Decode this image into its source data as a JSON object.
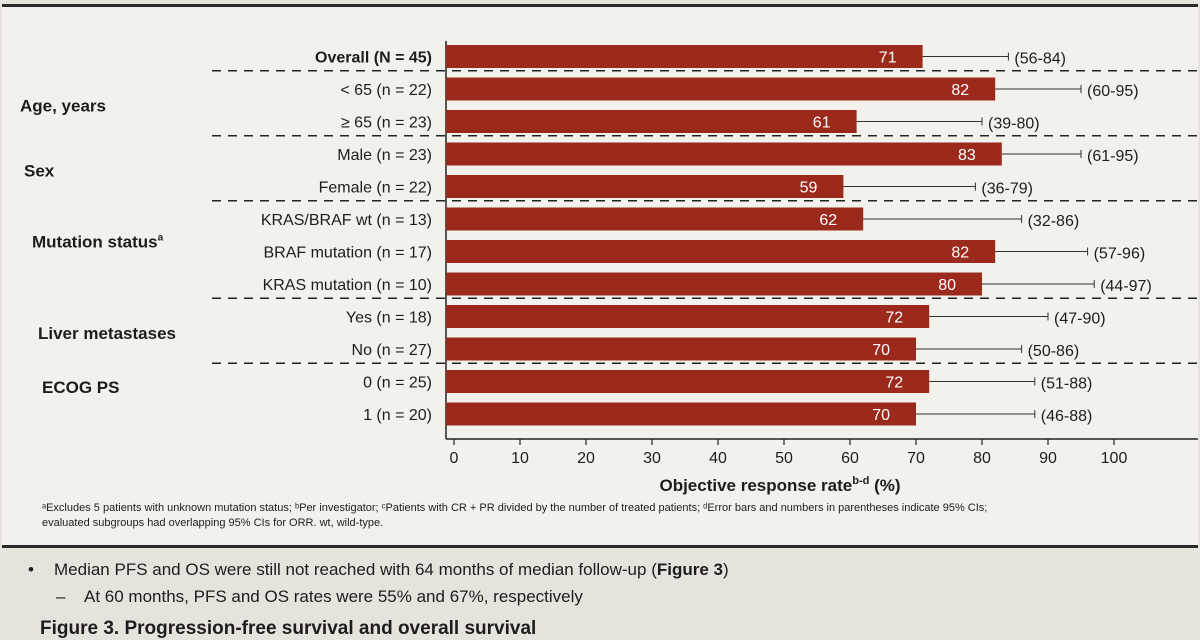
{
  "chart_data": {
    "type": "bar",
    "orientation": "horizontal",
    "xlabel": "Objective response rate",
    "xlabel_sup": "b-d",
    "xlabel_unit": "(%)",
    "xlim": [
      0,
      100
    ],
    "xticks": [
      0,
      10,
      20,
      30,
      40,
      50,
      60,
      70,
      80,
      90,
      100
    ],
    "bar_color": "#9b2a1c",
    "groups": [
      {
        "label": "Age, years",
        "sup": ""
      },
      {
        "label": "Sex",
        "sup": ""
      },
      {
        "label": "Mutation status",
        "sup": "a"
      },
      {
        "label": "Liver metastases",
        "sup": ""
      },
      {
        "label": "ECOG PS",
        "sup": ""
      }
    ],
    "rows": [
      {
        "label": "Overall (N = 45)",
        "value": 71,
        "ci_low": 56,
        "ci_high": 84,
        "ci_text": "(56-84)",
        "group": -1
      },
      {
        "label": "< 65 (n = 22)",
        "value": 82,
        "ci_low": 60,
        "ci_high": 95,
        "ci_text": "(60-95)",
        "group": 0
      },
      {
        "label": "≥ 65 (n = 23)",
        "value": 61,
        "ci_low": 39,
        "ci_high": 80,
        "ci_text": "(39-80)",
        "group": 0
      },
      {
        "label": "Male (n = 23)",
        "value": 83,
        "ci_low": 61,
        "ci_high": 95,
        "ci_text": "(61-95)",
        "group": 1
      },
      {
        "label": "Female (n = 22)",
        "value": 59,
        "ci_low": 36,
        "ci_high": 79,
        "ci_text": "(36-79)",
        "group": 1
      },
      {
        "label": "KRAS/BRAF wt (n = 13)",
        "value": 62,
        "ci_low": 32,
        "ci_high": 86,
        "ci_text": "(32-86)",
        "group": 2
      },
      {
        "label": "BRAF mutation (n = 17)",
        "value": 82,
        "ci_low": 57,
        "ci_high": 96,
        "ci_text": "(57-96)",
        "group": 2
      },
      {
        "label": "KRAS mutation (n = 10)",
        "value": 80,
        "ci_low": 44,
        "ci_high": 97,
        "ci_text": "(44-97)",
        "group": 2
      },
      {
        "label": "Yes (n = 18)",
        "value": 72,
        "ci_low": 47,
        "ci_high": 90,
        "ci_text": "(47-90)",
        "group": 3
      },
      {
        "label": "No (n = 27)",
        "value": 70,
        "ci_low": 50,
        "ci_high": 86,
        "ci_text": "(50-86)",
        "group": 3
      },
      {
        "label": "0 (n = 25)",
        "value": 72,
        "ci_low": 51,
        "ci_high": 88,
        "ci_text": "(51-88)",
        "group": 4
      },
      {
        "label": "1 (n = 20)",
        "value": 70,
        "ci_low": 46,
        "ci_high": 88,
        "ci_text": "(46-88)",
        "group": 4
      }
    ]
  },
  "footnote": {
    "line1": "ᵃExcludes 5 patients with unknown mutation status; ᵇPer investigator; ᶜPatients with CR + PR divided by the number of treated patients; ᵈError bars and numbers in parentheses indicate 95% CIs;",
    "line2": "evaluated subgroups had overlapping 95% CIs for ORR. wt, wild-type."
  },
  "bullets": {
    "bullet1_marker": "•",
    "bullet1_text": "Median PFS and OS were still not reached with 64 months of median follow-up (",
    "bullet1_ref": "Figure 3",
    "bullet1_end": ")",
    "sub1_marker": "–",
    "sub1_text": "At 60 months, PFS and OS rates were 55% and 67%, respectively"
  },
  "next_caption": "Figure 3. Progression-free survival and overall survival"
}
